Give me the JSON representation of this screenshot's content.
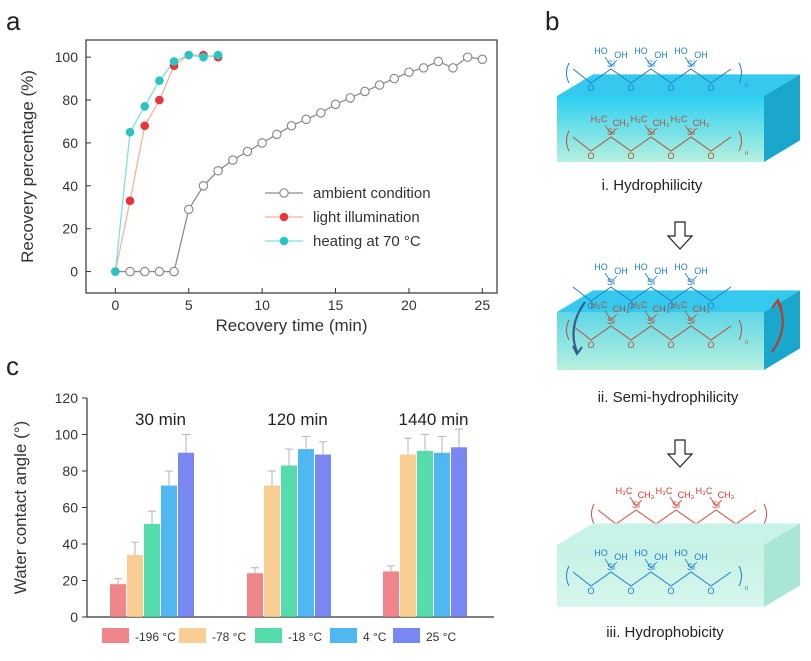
{
  "panel_labels": {
    "a": "a",
    "b": "b",
    "c": "c"
  },
  "chart_data": [
    {
      "type": "line",
      "id": "a",
      "title": "",
      "xlabel": "Recovery time (min)",
      "ylabel": "Recovery percentage (%)",
      "xlim": [
        -2,
        26
      ],
      "ylim": [
        -10,
        108
      ],
      "xticks": [
        0,
        5,
        10,
        15,
        20,
        25
      ],
      "yticks": [
        0,
        20,
        40,
        60,
        80,
        100
      ],
      "legend": "right-middle",
      "series": [
        {
          "name": "ambient condition",
          "color": "#8c8c8c",
          "marker": "open-circle",
          "x": [
            1,
            2,
            3,
            4,
            5,
            6,
            7,
            8,
            9,
            10,
            11,
            12,
            13,
            14,
            15,
            16,
            17,
            18,
            19,
            20,
            21,
            22,
            23,
            24,
            25
          ],
          "y": [
            0,
            0,
            0,
            0,
            29,
            40,
            47,
            52,
            56,
            60,
            64,
            68,
            71,
            74,
            78,
            81,
            84,
            87,
            90,
            93,
            95,
            98,
            95,
            100,
            99
          ]
        },
        {
          "name": "light illumination",
          "color": "#e8343b",
          "line_color": "#f4b49a",
          "marker": "filled-circle",
          "x": [
            0,
            1,
            2,
            3,
            4,
            5,
            6,
            7
          ],
          "y": [
            0,
            33,
            68,
            80,
            96,
            101,
            101,
            100
          ]
        },
        {
          "name": "heating at 70 °C",
          "color": "#2bc4c4",
          "line_color": "#7fe0e0",
          "marker": "filled-circle",
          "x": [
            0,
            1,
            2,
            3,
            4,
            5,
            6,
            7
          ],
          "y": [
            0,
            65,
            77,
            89,
            98,
            101,
            100,
            101
          ]
        }
      ]
    },
    {
      "type": "bar",
      "id": "c",
      "ylabel": "Water contact angle (°)",
      "xlabel": "",
      "ylim": [
        0,
        120
      ],
      "yticks": [
        0,
        20,
        40,
        60,
        80,
        100,
        120
      ],
      "groups": [
        "30 min",
        "120 min",
        "1440 min"
      ],
      "series": [
        {
          "name": "-196 °C",
          "color": "#ee6a73",
          "values": [
            18,
            24,
            25
          ],
          "errors": [
            3,
            3,
            3
          ]
        },
        {
          "name": "-78 °C",
          "color": "#f6c37a",
          "values": [
            34,
            72,
            89
          ],
          "errors": [
            7,
            8,
            9
          ]
        },
        {
          "name": "-18 °C",
          "color": "#2fd49a",
          "values": [
            51,
            83,
            91
          ],
          "errors": [
            7,
            9,
            9
          ]
        },
        {
          "name": "4 °C",
          "color": "#2aa8ee",
          "values": [
            72,
            92,
            90
          ],
          "errors": [
            8,
            7,
            9
          ]
        },
        {
          "name": "25 °C",
          "color": "#5b6cf0",
          "values": [
            90,
            89,
            93
          ],
          "errors": [
            10,
            7,
            10
          ]
        }
      ],
      "legend": "bottom"
    }
  ],
  "diagram_b": {
    "captions": [
      "i. Hydrophilicity",
      "ii. Semi-hydrophilicity",
      "iii. Hydrophobicity"
    ],
    "arrow_icon": "down-arrow-icon",
    "labels": {
      "oh": "OH",
      "ho": "HO",
      "si": "Si",
      "o": "O",
      "h3c": "H₃C",
      "ch3": "CH₃",
      "n": "n"
    }
  }
}
